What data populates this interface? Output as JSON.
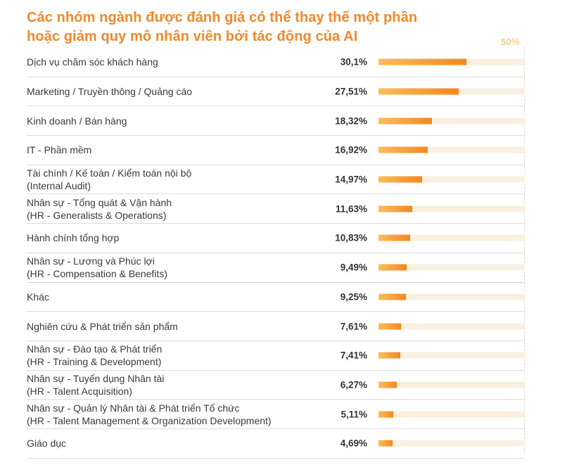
{
  "chart_data": {
    "type": "bar",
    "orientation": "horizontal",
    "title_lines": [
      "Các nhóm ngành được đánh giá có thể thay thế một phần",
      "hoặc giảm quy mô nhân viên bởi tác động của AI"
    ],
    "max_label": "50%",
    "xlim": [
      0,
      50
    ],
    "categories": [
      {
        "lines": [
          "Dịch vụ chăm sóc khách hàng"
        ],
        "value": 30.1,
        "label": "30,1%"
      },
      {
        "lines": [
          "Marketing / Truyền thông / Quảng cáo"
        ],
        "value": 27.51,
        "label": "27,51%"
      },
      {
        "lines": [
          "Kinh doanh / Bán hàng"
        ],
        "value": 18.32,
        "label": "18,32%"
      },
      {
        "lines": [
          "IT - Phần mềm"
        ],
        "value": 16.92,
        "label": "16,92%"
      },
      {
        "lines": [
          "Tài chính / Kế toán / Kiểm toán nội bộ",
          "(Internal Audit)"
        ],
        "value": 14.97,
        "label": "14,97%"
      },
      {
        "lines": [
          "Nhân sự - Tổng quát & Vận hành",
          "(HR - Generalists & Operations)"
        ],
        "value": 11.63,
        "label": "11,63%"
      },
      {
        "lines": [
          "Hành chính tổng hợp"
        ],
        "value": 10.83,
        "label": "10,83%"
      },
      {
        "lines": [
          "Nhân sự - Lương và Phúc lợi",
          "(HR - Compensation & Benefits)"
        ],
        "value": 9.49,
        "label": "9,49%"
      },
      {
        "lines": [
          "Khác"
        ],
        "value": 9.25,
        "label": "9,25%"
      },
      {
        "lines": [
          "Nghiên cứu & Phát triển sản phẩm"
        ],
        "value": 7.61,
        "label": "7,61%"
      },
      {
        "lines": [
          "Nhân sự - Đào tạo & Phát triển",
          "(HR - Training & Development)"
        ],
        "value": 7.41,
        "label": "7,41%"
      },
      {
        "lines": [
          "Nhân sự - Tuyển dụng Nhân tài",
          "(HR - Talent Acquisition)"
        ],
        "value": 6.27,
        "label": "6,27%"
      },
      {
        "lines": [
          "Nhân sự - Quản lý Nhân tài & Phát triển Tổ chức",
          "(HR - Talent Management & Organization Development)"
        ],
        "value": 5.11,
        "label": "5,11%"
      },
      {
        "lines": [
          "Giáo dục"
        ],
        "value": 4.69,
        "label": "4,69%"
      }
    ],
    "colors": {
      "title": "#f0892a",
      "bar_start": "#fbbd5a",
      "bar_end": "#f5871c",
      "track": "#fbefe0"
    }
  }
}
